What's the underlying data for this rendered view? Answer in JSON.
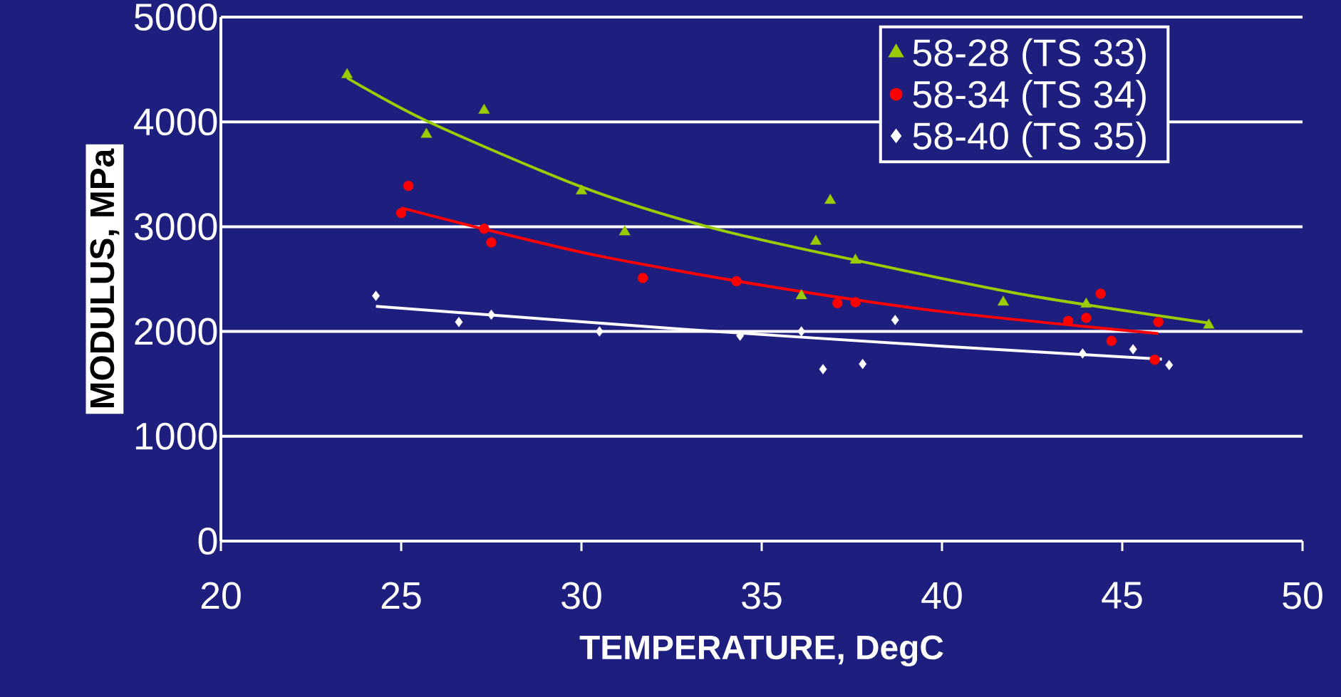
{
  "chart_data": {
    "type": "scatter",
    "xlabel": "TEMPERATURE, DegC",
    "ylabel": "MODULUS, MPa",
    "xlim": [
      20,
      50
    ],
    "ylim": [
      0,
      5000
    ],
    "xticks": [
      20,
      25,
      30,
      35,
      40,
      45,
      50
    ],
    "yticks": [
      0,
      1000,
      2000,
      3000,
      4000,
      5000
    ],
    "grid": "y",
    "legend": "top right",
    "series": [
      {
        "name": "58-28 (TS 33)",
        "color": "#99cc00",
        "marker": "triangle",
        "x": [
          23.5,
          25.7,
          27.3,
          30.0,
          31.2,
          36.1,
          36.5,
          36.9,
          37.6,
          41.7,
          44.0,
          47.4
        ],
        "values": [
          4450,
          3880,
          4110,
          3340,
          2950,
          2340,
          2860,
          3250,
          2680,
          2280,
          2260,
          2060
        ]
      },
      {
        "name": "58-34 (TS 34)",
        "color": "#ff0000",
        "marker": "circle",
        "x": [
          25.0,
          25.2,
          27.3,
          27.5,
          31.7,
          34.3,
          37.1,
          37.6,
          43.5,
          44.0,
          44.4,
          44.7,
          46.0,
          45.9
        ],
        "values": [
          3130,
          3390,
          2980,
          2850,
          2510,
          2480,
          2270,
          2280,
          2100,
          2130,
          2360,
          1910,
          2090,
          1730
        ]
      },
      {
        "name": "58-40 (TS 35)",
        "color": "#ffffff",
        "marker": "diamond",
        "x": [
          24.3,
          26.6,
          27.5,
          30.5,
          34.4,
          36.1,
          36.7,
          37.8,
          38.7,
          43.9,
          45.3,
          46.3
        ],
        "values": [
          2340,
          2090,
          2160,
          2000,
          1960,
          2000,
          1640,
          1690,
          2110,
          1790,
          1830,
          1680
        ]
      },
      {
        "type": "line",
        "color": "#99cc00",
        "line_style": "solid",
        "x": [
          23.5,
          25.7,
          30.0,
          33.6,
          37.6,
          42.3,
          47.4
        ],
        "values": [
          4420,
          4010,
          3380,
          2990,
          2680,
          2350,
          2080
        ]
      },
      {
        "type": "line",
        "color": "#ff0000",
        "line_style": "solid",
        "x": [
          25.0,
          27.5,
          30.5,
          35.2,
          40.0,
          46.0
        ],
        "values": [
          3180,
          2960,
          2720,
          2430,
          2190,
          1980
        ]
      },
      {
        "type": "line",
        "color": "#ffffff",
        "line_style": "solid",
        "x": [
          24.3,
          32.9,
          40.0,
          46.1
        ],
        "values": [
          2240,
          2020,
          1860,
          1735
        ]
      }
    ]
  }
}
